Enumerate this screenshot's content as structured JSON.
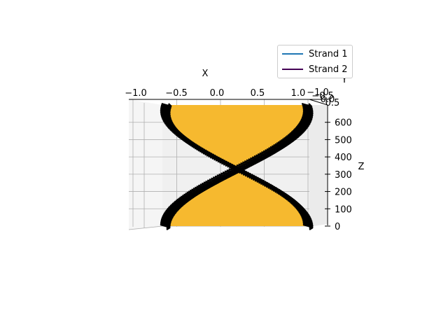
{
  "chart_data": {
    "type": "line",
    "projection": "3d",
    "title": "",
    "xlabel": "X",
    "ylabel": "Y",
    "zlabel": "Z",
    "x_ticks": [
      "−1.0",
      "−0.5",
      "0.0",
      "0.5",
      "1.0"
    ],
    "y_ticks": [
      "−1.0",
      "−0.5",
      "0.0",
      "0.5"
    ],
    "z_ticks": [
      "0",
      "100",
      "200",
      "300",
      "400",
      "500",
      "600"
    ],
    "xlim": [
      -1.0,
      1.0
    ],
    "zlim": [
      0,
      700
    ],
    "grid": true,
    "legend_position": "top-right",
    "series": [
      {
        "name": "Strand 1",
        "color": "#1f77b4",
        "marker": "black arrows",
        "z": [
          0,
          50,
          100,
          150,
          200,
          250,
          300,
          350,
          400,
          450,
          500,
          550,
          600,
          650,
          700
        ],
        "x": [
          1.0,
          0.98,
          0.91,
          0.8,
          0.66,
          0.49,
          0.31,
          0.11,
          -0.09,
          -0.28,
          -0.46,
          -0.62,
          -0.77,
          -0.88,
          -0.96
        ]
      },
      {
        "name": "Strand 2",
        "color": "#440154",
        "marker": "black arrows",
        "z": [
          0,
          50,
          100,
          150,
          200,
          250,
          300,
          350,
          400,
          450,
          500,
          550,
          600,
          650,
          700
        ],
        "x": [
          -1.0,
          -0.98,
          -0.91,
          -0.8,
          -0.66,
          -0.49,
          -0.31,
          -0.11,
          0.09,
          0.28,
          0.46,
          0.62,
          0.77,
          0.88,
          0.96
        ]
      }
    ],
    "fill_between": {
      "color": "#f6b92f"
    }
  }
}
